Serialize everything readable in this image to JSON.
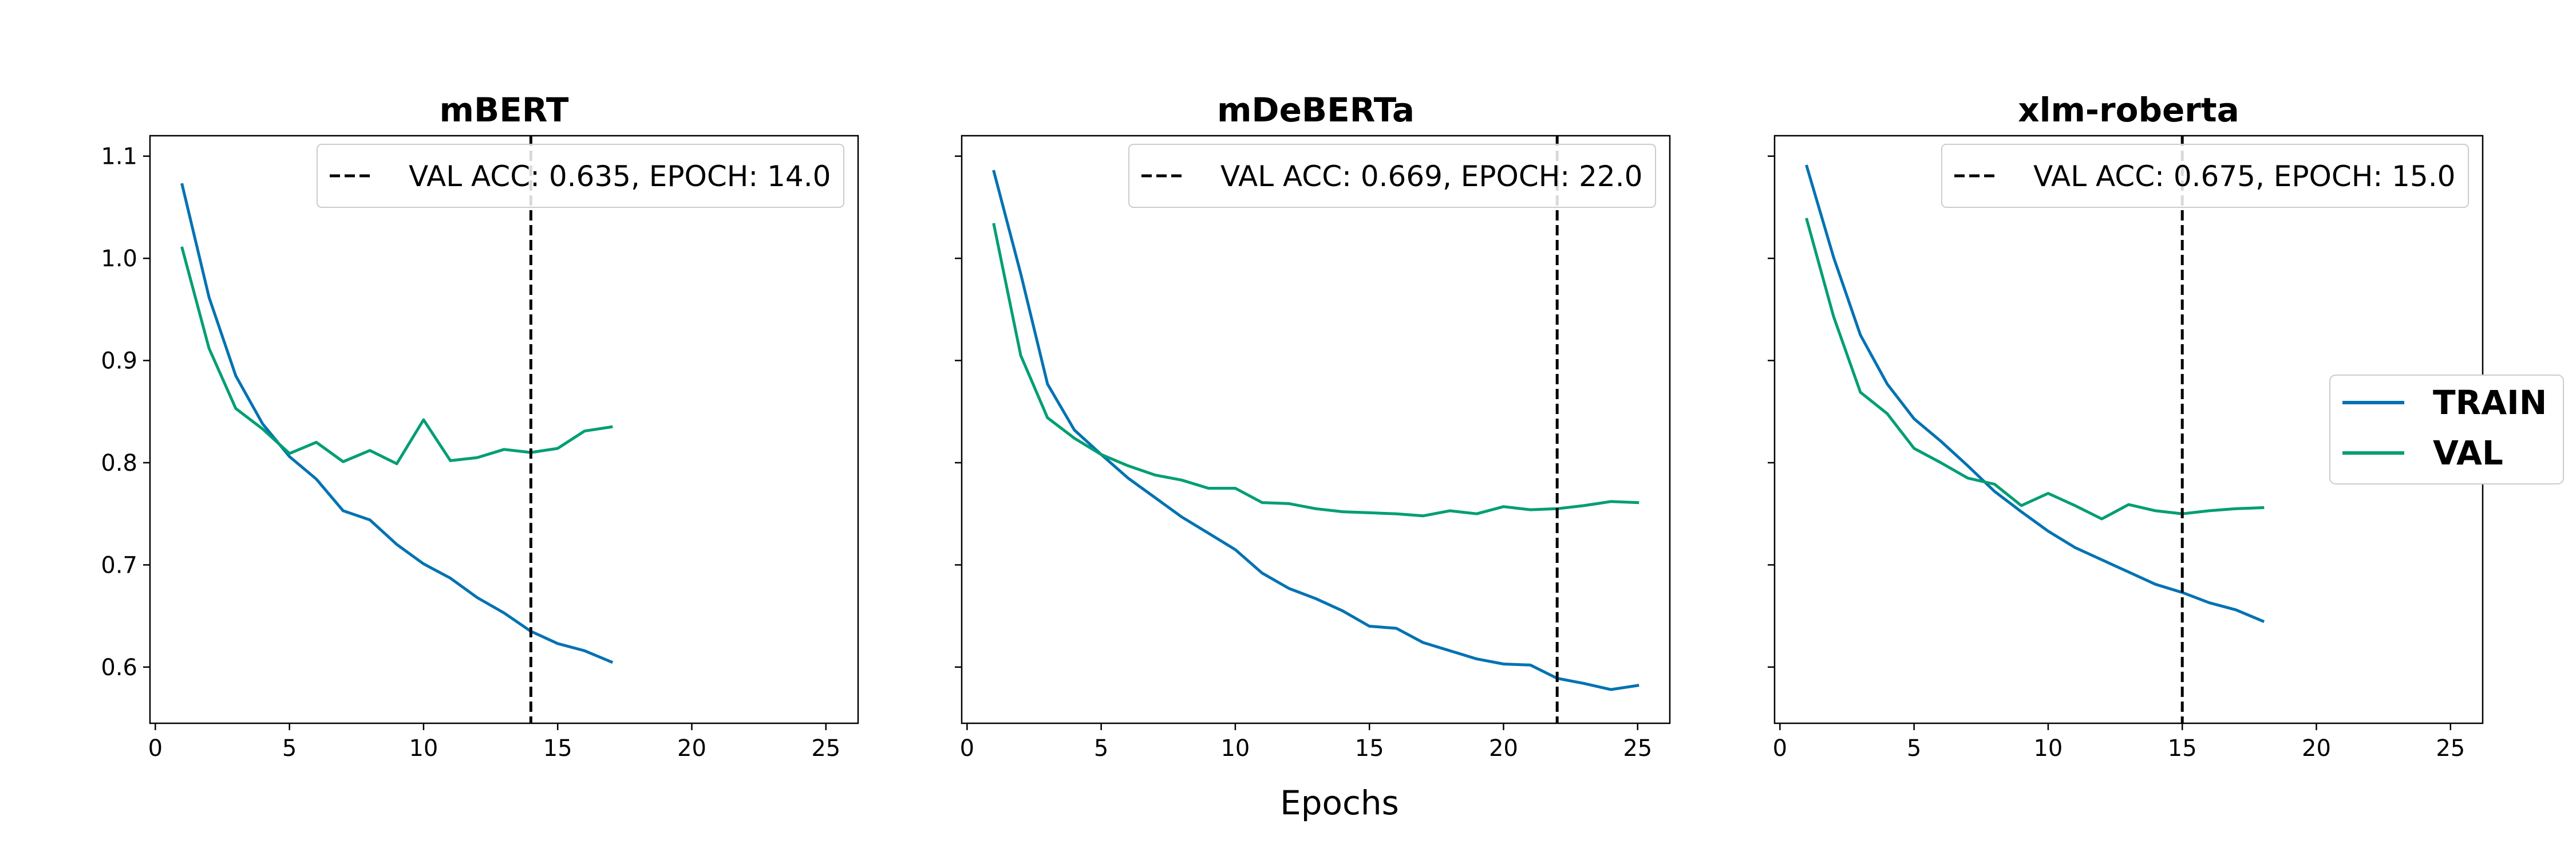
{
  "chart_data": {
    "type": "line",
    "xlabel": "Epochs",
    "xlim": [
      -0.2,
      26.2
    ],
    "ylim": [
      0.545,
      1.12
    ],
    "xticks": [
      0,
      5,
      10,
      15,
      20,
      25
    ],
    "yticks": [
      0.6,
      0.7,
      0.8,
      0.9,
      1.0,
      1.1
    ],
    "grid": false,
    "legend": {
      "position": "right",
      "entries": [
        "TRAIN",
        "VAL"
      ]
    },
    "colors": {
      "TRAIN": "#0072B2",
      "VAL": "#009E73",
      "marker": "#000000"
    },
    "panels": [
      {
        "title": "mBERT",
        "marker_epoch": 14,
        "marker_label": "VAL ACC: 0.635, EPOCH: 14.0",
        "series": [
          {
            "name": "TRAIN",
            "x": [
              1,
              2,
              3,
              4,
              5,
              6,
              7,
              8,
              9,
              10,
              11,
              12,
              13,
              14,
              15,
              16,
              17
            ],
            "values": [
              1.072,
              0.962,
              0.885,
              0.838,
              0.806,
              0.784,
              0.753,
              0.744,
              0.72,
              0.701,
              0.687,
              0.668,
              0.653,
              0.635,
              0.623,
              0.616,
              0.605
            ]
          },
          {
            "name": "VAL",
            "x": [
              1,
              2,
              3,
              4,
              5,
              6,
              7,
              8,
              9,
              10,
              11,
              12,
              13,
              14,
              15,
              16,
              17
            ],
            "values": [
              1.01,
              0.912,
              0.853,
              0.833,
              0.809,
              0.82,
              0.801,
              0.812,
              0.799,
              0.842,
              0.802,
              0.805,
              0.813,
              0.81,
              0.814,
              0.831,
              0.835
            ]
          }
        ]
      },
      {
        "title": "mDeBERTa",
        "marker_epoch": 22,
        "marker_label": "VAL ACC: 0.669, EPOCH: 22.0",
        "series": [
          {
            "name": "TRAIN",
            "x": [
              1,
              2,
              3,
              4,
              5,
              6,
              7,
              8,
              9,
              10,
              11,
              12,
              13,
              14,
              15,
              16,
              17,
              18,
              19,
              20,
              21,
              22,
              23,
              24,
              25
            ],
            "values": [
              1.085,
              0.985,
              0.877,
              0.832,
              0.808,
              0.785,
              0.766,
              0.747,
              0.731,
              0.715,
              0.692,
              0.677,
              0.667,
              0.655,
              0.64,
              0.638,
              0.624,
              0.616,
              0.608,
              0.603,
              0.602,
              0.589,
              0.584,
              0.578,
              0.582
            ]
          },
          {
            "name": "VAL",
            "x": [
              1,
              2,
              3,
              4,
              5,
              6,
              7,
              8,
              9,
              10,
              11,
              12,
              13,
              14,
              15,
              16,
              17,
              18,
              19,
              20,
              21,
              22,
              23,
              24,
              25
            ],
            "values": [
              1.033,
              0.905,
              0.844,
              0.824,
              0.808,
              0.797,
              0.788,
              0.783,
              0.775,
              0.775,
              0.761,
              0.76,
              0.755,
              0.752,
              0.751,
              0.75,
              0.748,
              0.753,
              0.75,
              0.757,
              0.754,
              0.755,
              0.758,
              0.762,
              0.761
            ]
          }
        ]
      },
      {
        "title": "xlm-roberta",
        "marker_epoch": 15,
        "marker_label": "VAL ACC: 0.675, EPOCH: 15.0",
        "series": [
          {
            "name": "TRAIN",
            "x": [
              1,
              2,
              3,
              4,
              5,
              6,
              7,
              8,
              9,
              10,
              11,
              12,
              13,
              14,
              15,
              16,
              17,
              18
            ],
            "values": [
              1.09,
              1.001,
              0.925,
              0.877,
              0.843,
              0.821,
              0.797,
              0.772,
              0.752,
              0.733,
              0.717,
              0.705,
              0.693,
              0.681,
              0.673,
              0.663,
              0.656,
              0.645
            ]
          },
          {
            "name": "VAL",
            "x": [
              1,
              2,
              3,
              4,
              5,
              6,
              7,
              8,
              9,
              10,
              11,
              12,
              13,
              14,
              15,
              16,
              17,
              18
            ],
            "values": [
              1.038,
              0.943,
              0.869,
              0.848,
              0.814,
              0.8,
              0.785,
              0.779,
              0.758,
              0.77,
              0.758,
              0.745,
              0.759,
              0.753,
              0.75,
              0.753,
              0.755,
              0.756
            ]
          }
        ]
      }
    ]
  }
}
